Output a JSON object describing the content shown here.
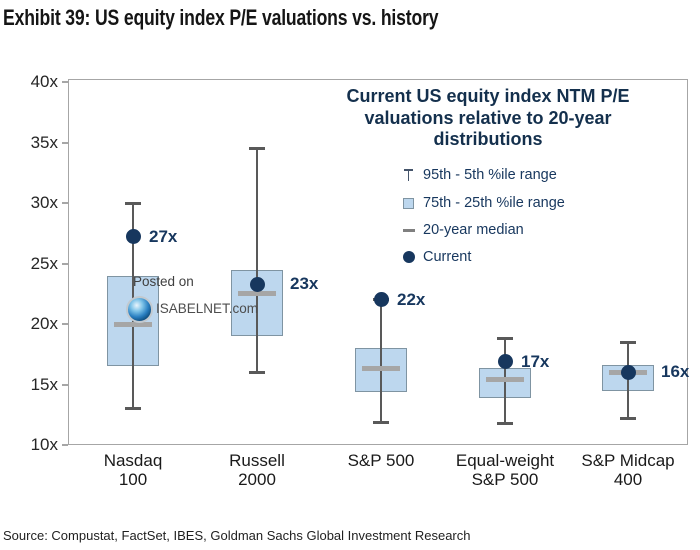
{
  "title": "Exhibit 39: US equity index P/E valuations vs. history",
  "source": "Source: Compustat, FactSet, IBES, Goldman Sachs Global Investment Research",
  "watermark": {
    "line1": "Posted on",
    "line2": "ISABELNET.com",
    "logo_icon": "isabelnet-swirl-logo"
  },
  "legend": {
    "title_lines": [
      "Current US equity index NTM P/E",
      "valuations relative to 20-year",
      "distributions"
    ],
    "items": [
      {
        "marker": "whisker-range-icon",
        "label": "95th - 5th %ile range"
      },
      {
        "marker": "iqr-box-icon",
        "label": "75th - 25th %ile range"
      },
      {
        "marker": "median-dash-icon",
        "label": "20-year median"
      },
      {
        "marker": "current-dot-icon",
        "label": "Current"
      }
    ]
  },
  "colors": {
    "box_fill": "#BDD7EE",
    "box_border": "#7f94a2",
    "whisker": "#595959",
    "median": "#a6a6a6",
    "current_dot": "#17375E",
    "value_label": "#17375E",
    "legend_text": "#17375E",
    "plot_border": "#a6a6a6"
  },
  "chart_data": {
    "type": "boxplot",
    "title": "Current US equity index NTM P/E valuations relative to 20-year distributions",
    "y_axis": {
      "min": 10,
      "max": 40,
      "tick_step": 5,
      "tick_suffix": "x",
      "tick_values": [
        40,
        35,
        30,
        25,
        20,
        15,
        10
      ],
      "tick_labels": [
        "40x",
        "35x",
        "30x",
        "25x",
        "20x",
        "15x",
        "10x"
      ],
      "grid": false
    },
    "categories": [
      [
        "Nasdaq",
        "100"
      ],
      [
        "Russell",
        "2000"
      ],
      [
        "S&P 500"
      ],
      [
        "Equal-weight",
        "S&P 500"
      ],
      [
        "S&P Midcap",
        "400"
      ]
    ],
    "series": [
      {
        "name": "Nasdaq 100",
        "p95": 30.0,
        "p75": 24.0,
        "median": 20.0,
        "p25": 16.5,
        "p5": 13.0,
        "current": 27.2,
        "current_label": "27x"
      },
      {
        "name": "Russell 2000",
        "p95": 34.5,
        "p75": 24.5,
        "median": 22.5,
        "p25": 19.0,
        "p5": 16.0,
        "current": 23.3,
        "current_label": "23x"
      },
      {
        "name": "S&P 500",
        "p95": 22.0,
        "p75": 18.0,
        "median": 16.3,
        "p25": 14.4,
        "p5": 11.9,
        "current": 22.0,
        "current_label": "22x"
      },
      {
        "name": "Equal-weight S&P 500",
        "p95": 18.8,
        "p75": 16.4,
        "median": 15.4,
        "p25": 13.9,
        "p5": 11.8,
        "current": 16.9,
        "current_label": "17x"
      },
      {
        "name": "S&P Midcap 400",
        "p95": 18.5,
        "p75": 16.6,
        "median": 16.0,
        "p25": 14.5,
        "p5": 12.2,
        "current": 16.0,
        "current_label": "16x"
      }
    ],
    "legend_position": "inside-top-right"
  }
}
